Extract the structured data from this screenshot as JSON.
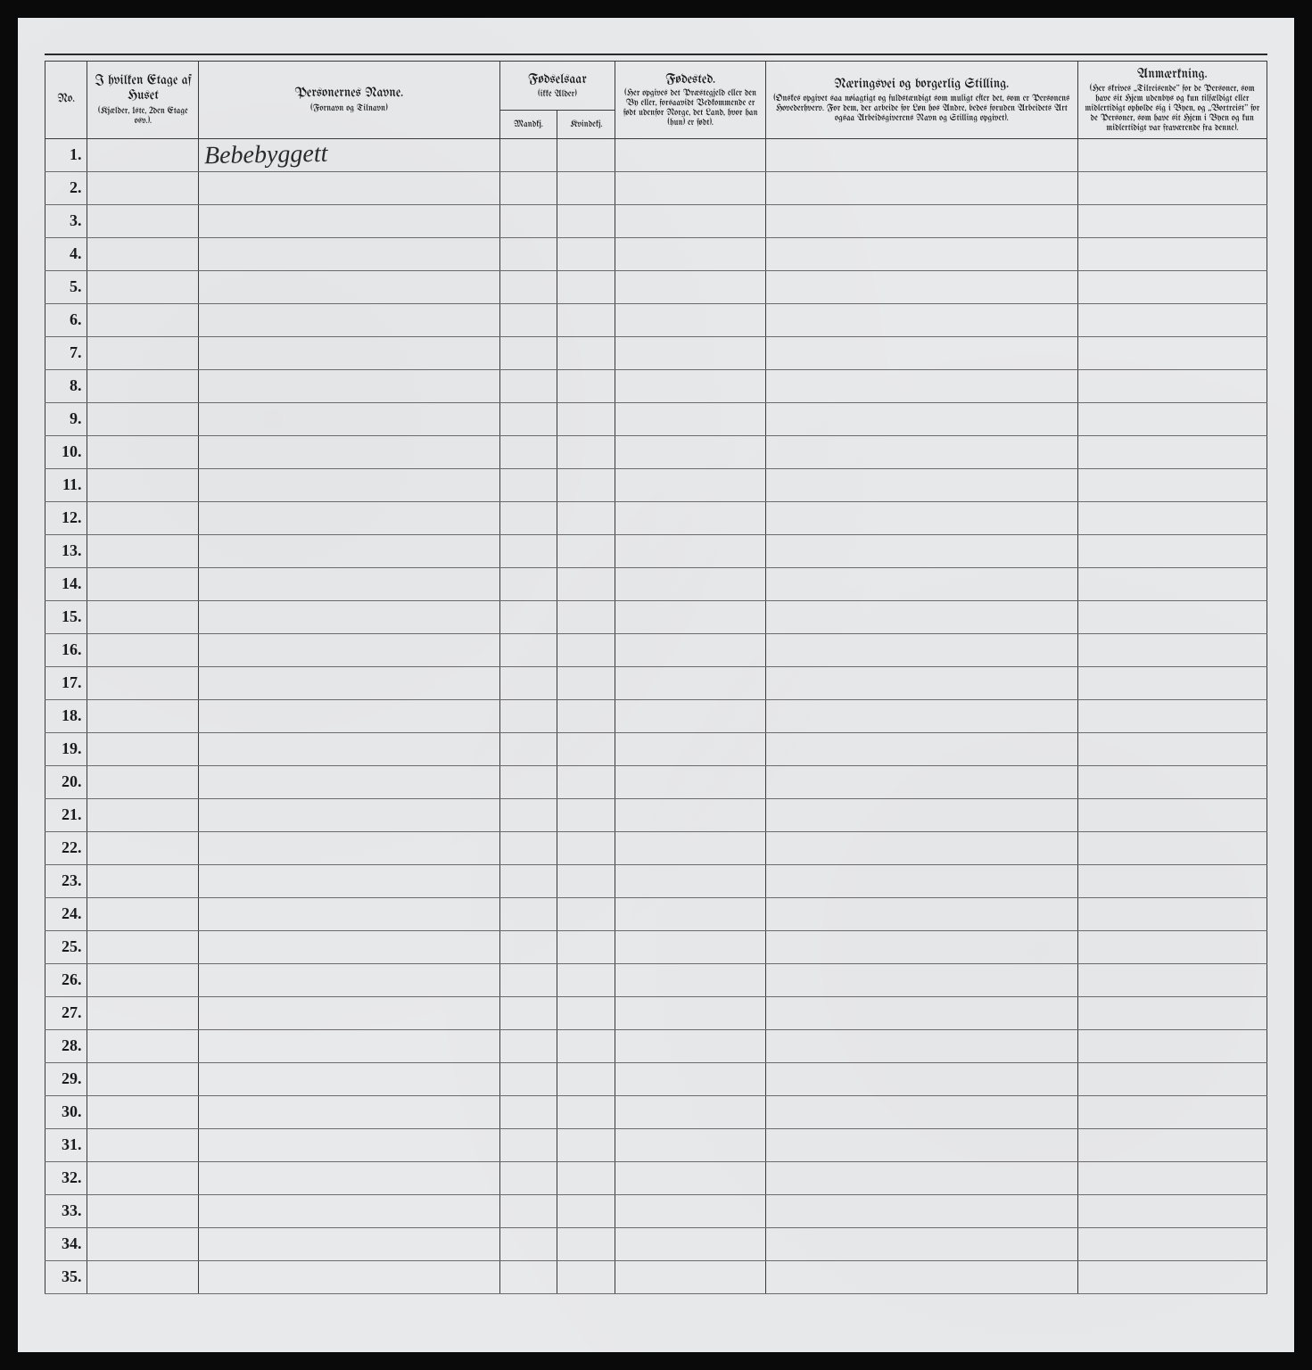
{
  "columns": {
    "no": "No.",
    "etage": {
      "title": "I hvilken Etage af Huset",
      "sub": "(Kjælder, 1ste, 2den Etage osv.)."
    },
    "navn": {
      "title": "Personernes Navne.",
      "sub": "(Fornavn og Tilnavn)"
    },
    "fodselsaar": {
      "title": "Fødselsaar",
      "sub": "(ikke Alder)",
      "m": "Mandkj.",
      "k": "Kvindekj."
    },
    "fodested": {
      "title": "Fødested.",
      "sub": "(Her opgives det Præstegjeld eller den By eller, forsaavidt Vedkommende er født udenfor Norge, det Land, hvor han (hun) er født)."
    },
    "naering": {
      "title": "Næringsvei og borgerlig Stilling.",
      "sub": "(Ønskes opgivet saa nøiagtigt og fuldstændigt som muligt efter det, som er Personens Hovederhverv. For dem, der arbeide for Løn hos Andre, bedes foruden Arbeidets Art ogsaa Arbeidsgiverens Navn og Stilling opgivet)."
    },
    "anm": {
      "title": "Anmærkning.",
      "sub": "(Her skrives „Tilreisende\" for de Personer, som have sit Hjem udenbys og kun tilfældigt eller midlertidigt opholde sig i Byen, og „Bortreist\" for de Personer, som have sit Hjem i Byen og kun midlertidigt var fraværende fra denne)."
    }
  },
  "row_count": 35,
  "entries": {
    "1": {
      "navn": "Bebebyggett"
    }
  },
  "colors": {
    "page_bg": "#e8e9eb",
    "rule": "#3a3a3a",
    "row_rule": "#6a6a6a",
    "text": "#1a1a1a"
  }
}
